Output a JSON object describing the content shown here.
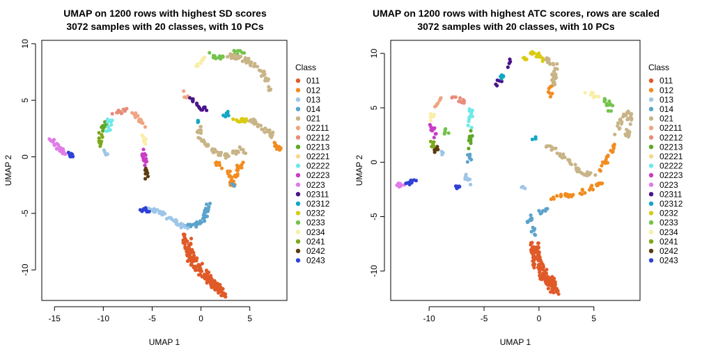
{
  "classes": [
    {
      "name": "011",
      "color": "#E05A28"
    },
    {
      "name": "012",
      "color": "#F28C1E"
    },
    {
      "name": "013",
      "color": "#9DC6E8"
    },
    {
      "name": "014",
      "color": "#5BA3CC"
    },
    {
      "name": "021",
      "color": "#C8B487"
    },
    {
      "name": "02211",
      "color": "#EFA582"
    },
    {
      "name": "02212",
      "color": "#E88C79"
    },
    {
      "name": "02213",
      "color": "#5FA826"
    },
    {
      "name": "02221",
      "color": "#F7D98A"
    },
    {
      "name": "02222",
      "color": "#6FE8E8"
    },
    {
      "name": "02223",
      "color": "#C83CC6"
    },
    {
      "name": "0223",
      "color": "#E17BE8"
    },
    {
      "name": "02311",
      "color": "#4A138A"
    },
    {
      "name": "02312",
      "color": "#12A6C2"
    },
    {
      "name": "0232",
      "color": "#D9CB11"
    },
    {
      "name": "0233",
      "color": "#74C34C"
    },
    {
      "name": "0234",
      "color": "#F9EEA8"
    },
    {
      "name": "0241",
      "color": "#7EA81C"
    },
    {
      "name": "0242",
      "color": "#5B3C0E"
    },
    {
      "name": "0243",
      "color": "#2F41D6"
    }
  ],
  "chart_data": [
    {
      "type": "scatter",
      "title": "UMAP on 1200 rows with highest SD scores",
      "subtitle": "3072 samples with 20 classes, with 10 PCs",
      "xlabel": "UMAP 1",
      "ylabel": "UMAP 2",
      "xlim": [
        -16.3,
        8.8
      ],
      "ylim": [
        -12.7,
        10.3
      ],
      "xticks": [
        -15,
        -10,
        -5,
        0,
        5
      ],
      "yticks": [
        -10,
        -5,
        0,
        5,
        10
      ],
      "legend_title": "Class",
      "legend_position": "right",
      "clusters": [
        {
          "class": "011",
          "path": [
            [
              -1.5,
              -7
            ],
            [
              -1,
              -9
            ],
            [
              0,
              -10
            ],
            [
              1,
              -11
            ],
            [
              2.3,
              -12.2
            ]
          ],
          "n": 150
        },
        {
          "class": "014",
          "path": [
            [
              -1.8,
              -6.2
            ],
            [
              -0.5,
              -6
            ],
            [
              0.3,
              -5.5
            ],
            [
              0.8,
              -4.2
            ]
          ],
          "n": 40
        },
        {
          "class": "013",
          "path": [
            [
              -5.5,
              -4.7
            ],
            [
              -4.5,
              -4.7
            ],
            [
              -3.5,
              -5.2
            ],
            [
              -2.5,
              -5.8
            ],
            [
              -1.5,
              -6.2
            ]
          ],
          "n": 40
        },
        {
          "class": "0243",
          "path": [
            [
              -6,
              -4.7
            ],
            [
              -5.4,
              -4.7
            ]
          ],
          "n": 12
        },
        {
          "class": "0223",
          "path": [
            [
              -15.3,
              1.4
            ],
            [
              -14.4,
              0.6
            ],
            [
              -13.8,
              0.2
            ]
          ],
          "n": 25
        },
        {
          "class": "0243",
          "path": [
            [
              -13.5,
              0.2
            ],
            [
              -13,
              0.2
            ]
          ],
          "n": 8
        },
        {
          "class": "0241",
          "path": [
            [
              -10.3,
              0.8
            ],
            [
              -10.3,
              2.2
            ]
          ],
          "n": 10
        },
        {
          "class": "02213",
          "path": [
            [
              -10.1,
              2.4
            ],
            [
              -9.6,
              3.2
            ]
          ],
          "n": 10
        },
        {
          "class": "02222",
          "path": [
            [
              -9.6,
              2.2
            ],
            [
              -9.3,
              3.3
            ]
          ],
          "n": 12
        },
        {
          "class": "02212",
          "path": [
            [
              -9,
              3.6
            ],
            [
              -8.4,
              4
            ],
            [
              -7.6,
              4.1
            ]
          ],
          "n": 12
        },
        {
          "class": "02211",
          "path": [
            [
              -7,
              3.9
            ],
            [
              -6.2,
              3.3
            ],
            [
              -5.8,
              2.5
            ]
          ],
          "n": 15
        },
        {
          "class": "0234",
          "path": [
            [
              -6,
              2.2
            ],
            [
              -5.7,
              1.1
            ]
          ],
          "n": 10
        },
        {
          "class": "02223",
          "path": [
            [
              -5.9,
              0.5
            ],
            [
              -5.7,
              -0.9
            ]
          ],
          "n": 14
        },
        {
          "class": "0242",
          "path": [
            [
              -5.7,
              -1
            ],
            [
              -5.6,
              -1.8
            ]
          ],
          "n": 8
        },
        {
          "class": "013",
          "path": [
            [
              -9.9,
              0.5
            ],
            [
              -9.7,
              0.2
            ]
          ],
          "n": 4
        },
        {
          "class": "02211",
          "path": [
            [
              -1.8,
              5.8
            ],
            [
              -1.5,
              5.1
            ]
          ],
          "n": 5
        },
        {
          "class": "02311",
          "path": [
            [
              -1.2,
              5.1
            ],
            [
              -0.6,
              4.8
            ]
          ],
          "n": 5
        },
        {
          "class": "02311",
          "path": [
            [
              -0.3,
              4.6
            ],
            [
              0.5,
              4.1
            ]
          ],
          "n": 10
        },
        {
          "class": "0234",
          "path": [
            [
              -0.5,
              7.9
            ],
            [
              0.5,
              8.8
            ]
          ],
          "n": 10
        },
        {
          "class": "0233",
          "path": [
            [
              0.8,
              9.1
            ],
            [
              2.3,
              8.7
            ]
          ],
          "n": 12
        },
        {
          "class": "0233",
          "path": [
            [
              3.3,
              9.2
            ],
            [
              4.5,
              9.2
            ]
          ],
          "n": 10
        },
        {
          "class": "021",
          "path": [
            [
              2.5,
              9
            ],
            [
              4.8,
              8.5
            ],
            [
              6.3,
              7.5
            ],
            [
              7.1,
              6
            ]
          ],
          "n": 55
        },
        {
          "class": "02312",
          "path": [
            [
              2.3,
              3.6
            ],
            [
              2.7,
              3.9
            ]
          ],
          "n": 6
        },
        {
          "class": "0232",
          "path": [
            [
              3.5,
              3.2
            ],
            [
              4.8,
              3.3
            ]
          ],
          "n": 16
        },
        {
          "class": "021",
          "path": [
            [
              5,
              3.4
            ],
            [
              6.3,
              2.5
            ],
            [
              7.5,
              1.8
            ]
          ],
          "n": 25
        },
        {
          "class": "012",
          "path": [
            [
              7.6,
              1.2
            ],
            [
              8.1,
              0.7
            ]
          ],
          "n": 10
        },
        {
          "class": "021",
          "path": [
            [
              -0.2,
              2.8
            ],
            [
              -0.1,
              1.8
            ],
            [
              0.5,
              1
            ],
            [
              1.6,
              0.3
            ],
            [
              2.8,
              0
            ]
          ],
          "n": 40
        },
        {
          "class": "02312",
          "path": [
            [
              -0.1,
              2.9
            ],
            [
              -0.1,
              3.3
            ]
          ],
          "n": 3
        },
        {
          "class": "021",
          "path": [
            [
              3.3,
              0.3
            ],
            [
              4.2,
              0.8
            ],
            [
              4.6,
              0.3
            ]
          ],
          "n": 12
        },
        {
          "class": "012",
          "path": [
            [
              1.5,
              -0.5
            ],
            [
              2.8,
              -1.2
            ],
            [
              3.2,
              -2.5
            ],
            [
              3.5,
              -1.6
            ],
            [
              4.3,
              -0.3
            ]
          ],
          "n": 40
        },
        {
          "class": "014",
          "path": [
            [
              3.2,
              -2.5
            ],
            [
              3.5,
              -2.6
            ]
          ],
          "n": 3
        }
      ]
    },
    {
      "type": "scatter",
      "title": "UMAP on 1200 rows with highest ATC scores, rows are scaled",
      "subtitle": "3072 samples with 20 classes, with 10 PCs",
      "xlabel": "UMAP 1",
      "ylabel": "UMAP 2",
      "xlim": [
        -13.5,
        9.2
      ],
      "ylim": [
        -12.7,
        11.2
      ],
      "xticks": [
        -10,
        -5,
        0,
        5
      ],
      "yticks": [
        -10,
        -5,
        0,
        5,
        10
      ],
      "legend_title": "Class",
      "legend_position": "right",
      "clusters": [
        {
          "class": "011",
          "path": [
            [
              -0.4,
              -7.5
            ],
            [
              -0.3,
              -9
            ],
            [
              0.4,
              -10.3
            ],
            [
              1.2,
              -11.3
            ],
            [
              1.6,
              -12
            ]
          ],
          "n": 150
        },
        {
          "class": "014",
          "path": [
            [
              -0.5,
              -6.8
            ],
            [
              -0.6,
              -6
            ]
          ],
          "n": 6
        },
        {
          "class": "014",
          "path": [
            [
              -1.2,
              -5.7
            ],
            [
              -0.5,
              -4.8
            ],
            [
              0.8,
              -4.3
            ]
          ],
          "n": 14
        },
        {
          "class": "012",
          "path": [
            [
              0.8,
              -3.5
            ],
            [
              1.8,
              -3.1
            ],
            [
              3.2,
              -3
            ],
            [
              5,
              -2.3
            ],
            [
              5.8,
              -1.7
            ]
          ],
          "n": 35
        },
        {
          "class": "012",
          "path": [
            [
              5.3,
              -1
            ],
            [
              6,
              0
            ],
            [
              6.8,
              1.5
            ]
          ],
          "n": 20
        },
        {
          "class": "021",
          "path": [
            [
              0.5,
              1.8
            ],
            [
              1.6,
              0.9
            ],
            [
              2.8,
              0
            ],
            [
              3.8,
              -0.9
            ],
            [
              5.2,
              -1.3
            ]
          ],
          "n": 40
        },
        {
          "class": "02312",
          "path": [
            [
              -0.5,
              2.3
            ],
            [
              -0.3,
              2.2
            ]
          ],
          "n": 3
        },
        {
          "class": "021",
          "path": [
            [
              7,
              2.6
            ],
            [
              7.5,
              4.2
            ],
            [
              8.3,
              4.5
            ],
            [
              8,
              2.4
            ]
          ],
          "n": 40
        },
        {
          "class": "0234",
          "path": [
            [
              4.2,
              6.3
            ],
            [
              5.6,
              6
            ]
          ],
          "n": 12
        },
        {
          "class": "0233",
          "path": [
            [
              5.8,
              5.8
            ],
            [
              6.5,
              5.3
            ],
            [
              6.5,
              4.5
            ]
          ],
          "n": 14
        },
        {
          "class": "013",
          "path": [
            [
              -1.7,
              -2.2
            ],
            [
              -1.4,
              -2.5
            ]
          ],
          "n": 3
        },
        {
          "class": "0243",
          "path": [
            [
              -7.5,
              -2.3
            ],
            [
              -7.2,
              -2.1
            ]
          ],
          "n": 6
        },
        {
          "class": "013",
          "path": [
            [
              -6.8,
              -1.2
            ],
            [
              -6.2,
              -1.9
            ]
          ],
          "n": 8
        },
        {
          "class": "014",
          "path": [
            [
              -6.4,
              -0.4
            ],
            [
              -6.3,
              0.8
            ]
          ],
          "n": 6
        },
        {
          "class": "02213",
          "path": [
            [
              -6.4,
              1.2
            ],
            [
              -6.2,
              2.8
            ]
          ],
          "n": 10
        },
        {
          "class": "02222",
          "path": [
            [
              -6.3,
              3.3
            ],
            [
              -6.2,
              4.9
            ]
          ],
          "n": 12
        },
        {
          "class": "02212",
          "path": [
            [
              -7.9,
              5.8
            ],
            [
              -7.3,
              5.8
            ],
            [
              -6.5,
              5.5
            ]
          ],
          "n": 10
        },
        {
          "class": "02211",
          "path": [
            [
              -9.4,
              5.2
            ],
            [
              -8.8,
              5.8
            ]
          ],
          "n": 8
        },
        {
          "class": "0234",
          "path": [
            [
              -9.8,
              4.8
            ],
            [
              -9.7,
              3.8
            ]
          ],
          "n": 6
        },
        {
          "class": "02223",
          "path": [
            [
              -9.8,
              3.5
            ],
            [
              -9.4,
              2.3
            ]
          ],
          "n": 12
        },
        {
          "class": "0241",
          "path": [
            [
              -9.8,
              1.9
            ],
            [
              -9.5,
              1.3
            ]
          ],
          "n": 6
        },
        {
          "class": "0242",
          "path": [
            [
              -9.4,
              1.4
            ],
            [
              -9.3,
              0.9
            ]
          ],
          "n": 6
        },
        {
          "class": "0233",
          "path": [
            [
              -8.5,
              3.1
            ],
            [
              -8.3,
              2.3
            ]
          ],
          "n": 6
        },
        {
          "class": "013",
          "path": [
            [
              -8.9,
              0.9
            ],
            [
              -8.8,
              0.7
            ]
          ],
          "n": 3
        },
        {
          "class": "0223",
          "path": [
            [
              -13,
              -2.2
            ],
            [
              -12.3,
              -1.9
            ]
          ],
          "n": 10
        },
        {
          "class": "0243",
          "path": [
            [
              -12.1,
              -1.9
            ],
            [
              -11.3,
              -1.8
            ]
          ],
          "n": 8
        },
        {
          "class": "02311",
          "path": [
            [
              -3.9,
              7.2
            ],
            [
              -3.5,
              7.6
            ]
          ],
          "n": 5
        },
        {
          "class": "02312",
          "path": [
            [
              -3.5,
              7.8
            ],
            [
              -2.8,
              8.5
            ]
          ],
          "n": 6
        },
        {
          "class": "02311",
          "path": [
            [
              -2.9,
              8.8
            ],
            [
              -2.6,
              9.5
            ]
          ],
          "n": 4
        },
        {
          "class": "0232",
          "path": [
            [
              -1.4,
              9.2
            ],
            [
              -0.6,
              10.2
            ],
            [
              0.5,
              9.4
            ]
          ],
          "n": 18
        },
        {
          "class": "021",
          "path": [
            [
              0.5,
              9.7
            ],
            [
              1.5,
              8.8
            ],
            [
              1.3,
              7.2
            ]
          ],
          "n": 35
        },
        {
          "class": "012",
          "path": [
            [
              1,
              7.2
            ],
            [
              1,
              5.8
            ]
          ],
          "n": 8
        }
      ]
    }
  ]
}
